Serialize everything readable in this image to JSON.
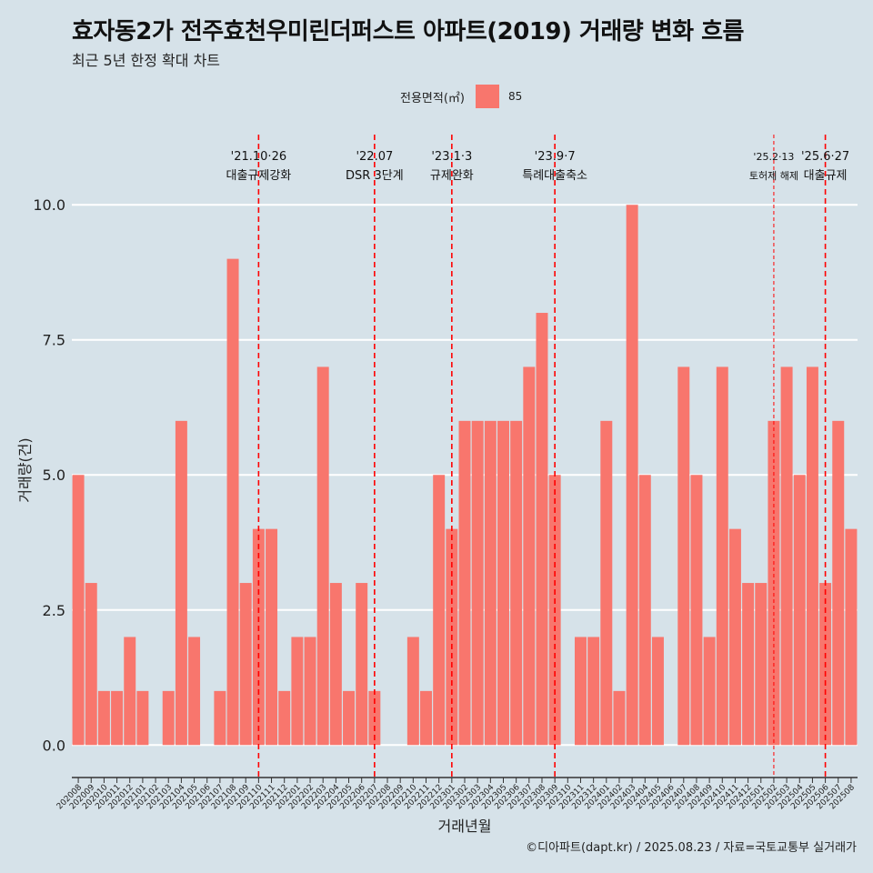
{
  "title": "효자동2가 전주효천우미린더퍼스트 아파트(2019) 거래량 변화 흐름",
  "subtitle": "최근 5년 한정 확대 차트",
  "legend": {
    "title": "전용면적(㎡)",
    "entry": "85"
  },
  "caption": "©디아파트(dapt.kr) / 2025.08.23 / 자료=국토교통부 실거래가",
  "colors": {
    "bar": "#F8766D",
    "background": "#d6e2e9",
    "vline": "#ff0000"
  },
  "chart_data": {
    "type": "bar",
    "xlabel": "거래년월",
    "ylabel": "거래량(건)",
    "ylim": [
      -0.45,
      11.3
    ],
    "yticks": [
      0.0,
      2.5,
      5.0,
      7.5,
      10.0
    ],
    "ytick_labels": [
      "0.0",
      "2.5",
      "5.0",
      "7.5",
      "10.0"
    ],
    "grid": true,
    "legend_position": "top",
    "categories": [
      "202008",
      "202009",
      "202010",
      "202011",
      "202012",
      "202101",
      "202102",
      "202103",
      "202104",
      "202105",
      "202106",
      "202107",
      "202108",
      "202109",
      "202110",
      "202111",
      "202112",
      "202201",
      "202202",
      "202203",
      "202204",
      "202205",
      "202206",
      "202207",
      "202208",
      "202209",
      "202210",
      "202211",
      "202212",
      "202301",
      "202302",
      "202303",
      "202304",
      "202305",
      "202306",
      "202307",
      "202308",
      "202309",
      "202310",
      "202311",
      "202312",
      "202401",
      "202402",
      "202403",
      "202404",
      "202405",
      "202406",
      "202407",
      "202408",
      "202409",
      "202410",
      "202411",
      "202412",
      "202501",
      "202502",
      "202503",
      "202504",
      "202505",
      "202506",
      "202507",
      "202508"
    ],
    "values": [
      5,
      3,
      1,
      1,
      2,
      1,
      0,
      1,
      6,
      2,
      0,
      1,
      9,
      3,
      4,
      4,
      1,
      2,
      2,
      7,
      3,
      1,
      3,
      1,
      0,
      0,
      2,
      1,
      5,
      4,
      6,
      6,
      6,
      6,
      6,
      7,
      8,
      5,
      0,
      2,
      2,
      6,
      1,
      10,
      5,
      2,
      0,
      7,
      5,
      2,
      7,
      4,
      3,
      3,
      6,
      7,
      5,
      7,
      3,
      6,
      4
    ],
    "annotations": [
      {
        "position": "202110",
        "date": "'21.10·26",
        "label": "대출규제강화",
        "style": "dashed"
      },
      {
        "position": "202207",
        "date": "'22.07",
        "label": "DSR 3단계",
        "style": "dashed"
      },
      {
        "position": "202301",
        "date": "'23.1·3",
        "label": "규제완화",
        "style": "dashed"
      },
      {
        "position": "202309",
        "date": "'23.9·7",
        "label": "특례대출축소",
        "style": "dashed"
      },
      {
        "position": "202502",
        "date": "'25.2·13",
        "label": "토허제 해제",
        "style": "dashed-thin"
      },
      {
        "position": "202506",
        "date": "'25.6·27",
        "label": "대출규제",
        "style": "dashed"
      }
    ]
  }
}
